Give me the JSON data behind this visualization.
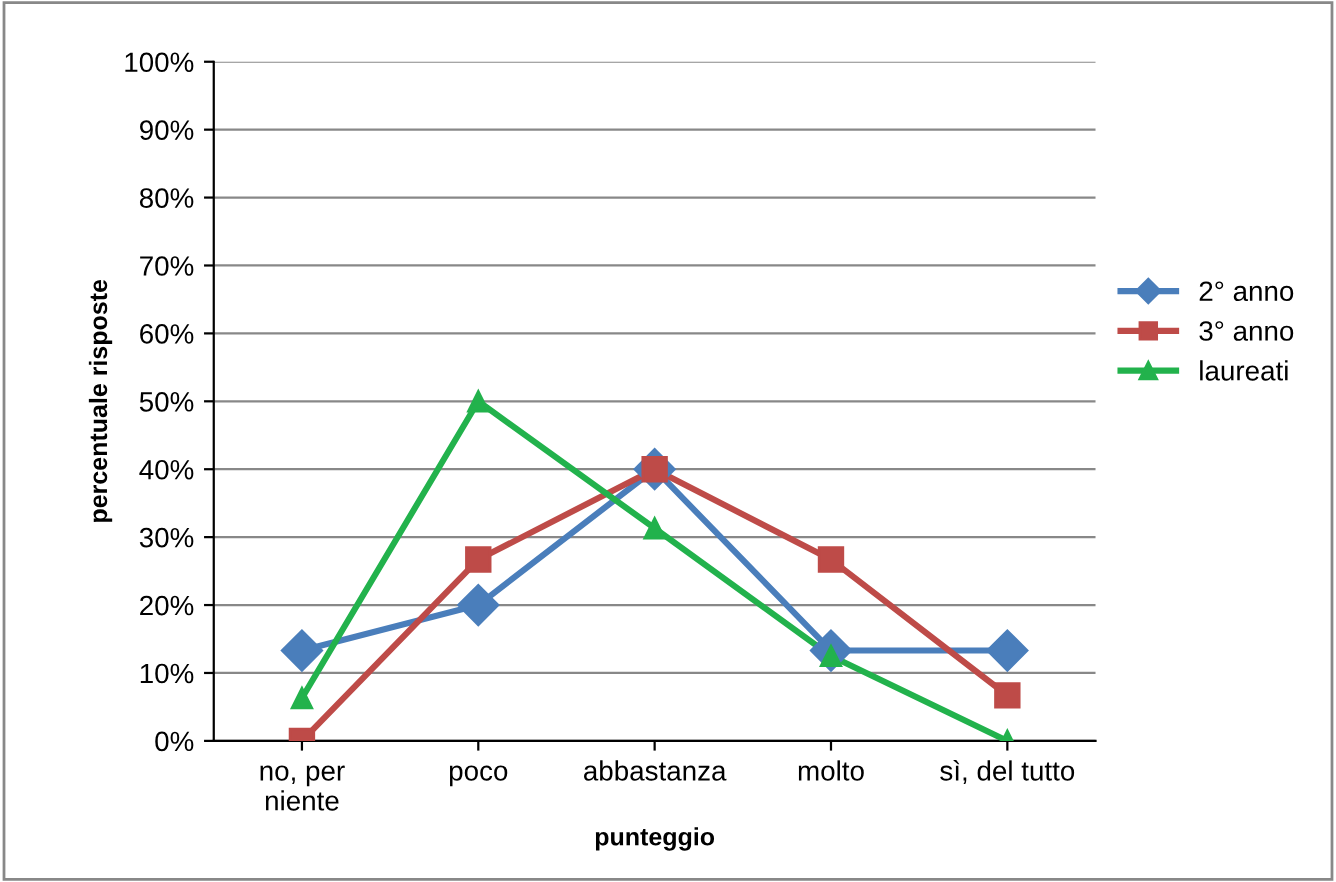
{
  "chart_data": {
    "type": "line",
    "xlabel": "punteggio",
    "ylabel": "percentuale risposte",
    "categories": [
      "no, per\nniente",
      "poco",
      "abbastanza",
      "molto",
      "sì, del tutto"
    ],
    "series": [
      {
        "name": "2° anno",
        "color": "#4a7ebb",
        "marker": "diamond",
        "values": [
          13.3,
          20,
          40,
          13.3,
          13.3
        ]
      },
      {
        "name": "3° anno",
        "color": "#be4b48",
        "marker": "square",
        "values": [
          0,
          26.7,
          40,
          26.7,
          6.7
        ]
      },
      {
        "name": "laureati",
        "color": "#22b24c",
        "marker": "triangle",
        "values": [
          6.3,
          50,
          31.3,
          12.5,
          0
        ]
      }
    ],
    "ylim": [
      0,
      100
    ],
    "yticks": [
      {
        "value": 0,
        "label": "0%"
      },
      {
        "value": 10,
        "label": "10%"
      },
      {
        "value": 20,
        "label": "20%"
      },
      {
        "value": 30,
        "label": "30%"
      },
      {
        "value": 40,
        "label": "40%"
      },
      {
        "value": 50,
        "label": "50%"
      },
      {
        "value": 60,
        "label": "60%"
      },
      {
        "value": 70,
        "label": "70%"
      },
      {
        "value": 80,
        "label": "80%"
      },
      {
        "value": 90,
        "label": "90%"
      },
      {
        "value": 100,
        "label": "100%"
      }
    ],
    "grid": "y",
    "legend": "right",
    "line_style": "solid"
  }
}
